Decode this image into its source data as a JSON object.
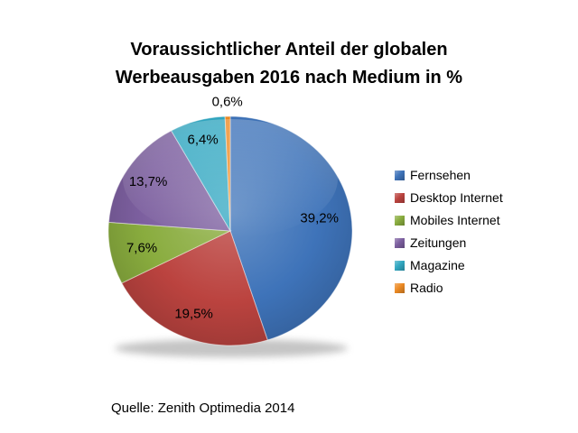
{
  "page": {
    "background": "#ffffff"
  },
  "chart_data": {
    "type": "pie",
    "title": "Voraussichtlicher Anteil der globalen Werbeausgaben 2016 nach Medium in %",
    "source": "Quelle: Zenith Optimedia 2014",
    "legend_position": "right",
    "direction": "clockwise",
    "start_angle_deg": 0,
    "value_format": "percent-comma-decimal",
    "slices": [
      {
        "label": "Fernsehen",
        "value": 39.2,
        "display": "39,2%",
        "color": "#3E73B9"
      },
      {
        "label": "Desktop Internet",
        "value": 19.5,
        "display": "19,5%",
        "color": "#BB433F"
      },
      {
        "label": "Mobiles Internet",
        "value": 7.6,
        "display": "7,6%",
        "color": "#89AC3E"
      },
      {
        "label": "Zeitungen",
        "value": 13.7,
        "display": "13,7%",
        "color": "#7C5F9F"
      },
      {
        "label": "Magazine",
        "value": 6.4,
        "display": "6,4%",
        "color": "#31A7C1"
      },
      {
        "label": "Radio",
        "value": 0.6,
        "display": "0,6%",
        "color": "#EC8A24"
      }
    ]
  }
}
